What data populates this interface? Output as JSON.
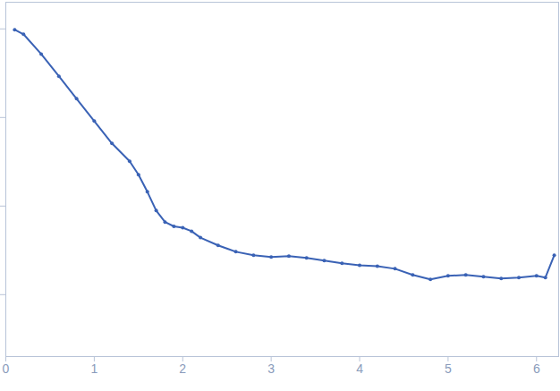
{
  "chart_data": {
    "type": "line",
    "marker": "circle",
    "color": "#3a62b5",
    "log": "y",
    "tick_labels": "x",
    "x": [
      0.1,
      0.2,
      0.4,
      0.6,
      0.8,
      1.0,
      1.2,
      1.4,
      1.5,
      1.6,
      1.7,
      1.8,
      1.9,
      2.0,
      2.1,
      2.2,
      2.4,
      2.6,
      2.8,
      3.0,
      3.2,
      3.4,
      3.6,
      3.8,
      4.0,
      4.2,
      4.4,
      4.6,
      4.8,
      5.0,
      5.2,
      5.4,
      5.6,
      5.8,
      6.0,
      6.1,
      6.2
    ],
    "values": [
      980,
      870,
      520,
      292,
      163,
      91,
      51,
      32,
      22.6,
      14.5,
      8.9,
      6.6,
      5.9,
      5.7,
      5.2,
      4.4,
      3.6,
      3.05,
      2.78,
      2.66,
      2.72,
      2.6,
      2.42,
      2.26,
      2.15,
      2.1,
      1.96,
      1.67,
      1.49,
      1.63,
      1.67,
      1.59,
      1.52,
      1.56,
      1.63,
      1.56,
      2.78
    ],
    "xlim": [
      0,
      6.25
    ],
    "xticks": [
      0,
      1,
      2,
      3,
      4,
      5,
      6
    ],
    "ylim": [
      0.2,
      2000
    ],
    "yticks": [
      1,
      10,
      100,
      1000
    ]
  }
}
